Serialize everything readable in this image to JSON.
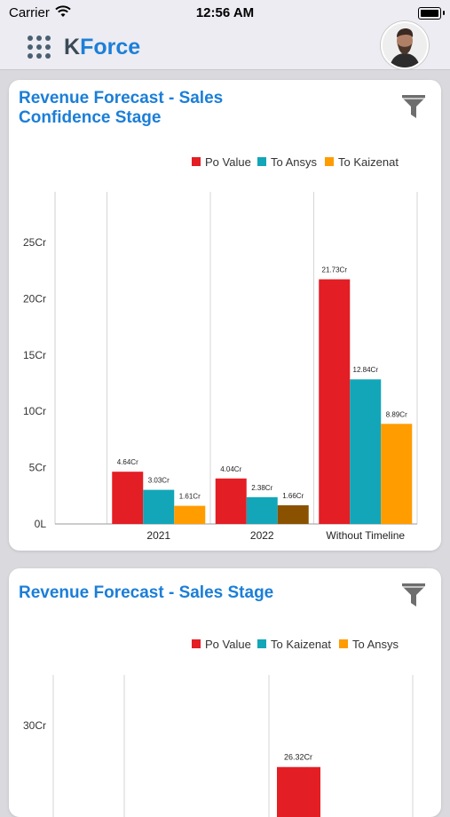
{
  "status_bar": {
    "carrier": "Carrier",
    "time": "12:56 AM"
  },
  "header": {
    "brand_k": "K",
    "brand_rest": "Force"
  },
  "cards": [
    {
      "title": "Revenue Forecast - Sales Confidence Stage",
      "chart_data": {
        "type": "bar",
        "categories": [
          "2021",
          "2022",
          "Without Timeline"
        ],
        "series": [
          {
            "name": "Po Value",
            "values": [
              4.64,
              4.04,
              21.73
            ],
            "color": "#e31e24",
            "labels": [
              "4.64Cr",
              "4.04Cr",
              "21.73Cr"
            ]
          },
          {
            "name": "To Ansys",
            "values": [
              3.03,
              2.38,
              12.84
            ],
            "color": "#12a6b8",
            "labels": [
              "3.03Cr",
              "2.38Cr",
              "12.84Cr"
            ]
          },
          {
            "name": "To Kaizenat",
            "values": [
              1.61,
              1.66,
              8.89
            ],
            "color": "#ff9c00",
            "colors": [
              "#ff9c00",
              "#8a5200",
              "#ff9c00"
            ],
            "labels": [
              "1.61Cr",
              "1.66Cr",
              "8.89Cr"
            ]
          }
        ],
        "y_ticks": [
          0,
          5,
          10,
          15,
          20,
          25
        ],
        "y_tick_labels": [
          "0L",
          "5Cr",
          "10Cr",
          "15Cr",
          "20Cr",
          "25Cr"
        ],
        "ylim": [
          0,
          29.5
        ],
        "grid": "vertical",
        "legend": "top-right"
      }
    },
    {
      "title": "Revenue Forecast - Sales Stage",
      "chart_data": {
        "type": "bar",
        "categories": [],
        "series": [
          {
            "name": "Po Value",
            "color": "#e31e24",
            "visible_bars": [
              {
                "value": 26.32,
                "label": "26.32Cr"
              }
            ]
          },
          {
            "name": "To Kaizenat",
            "color": "#12a6b8",
            "visible_bars": []
          },
          {
            "name": "To Ansys",
            "color": "#ff9c00",
            "visible_bars": []
          }
        ],
        "y_ticks": [
          30
        ],
        "y_tick_labels": [
          "30Cr"
        ],
        "legend": "top-right"
      }
    }
  ]
}
